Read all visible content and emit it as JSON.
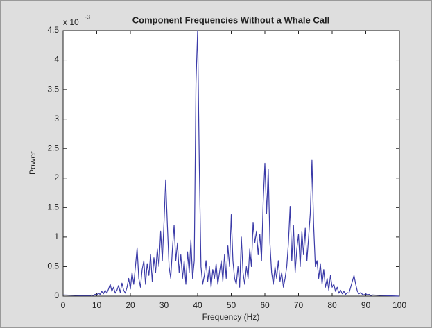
{
  "chart_data": {
    "type": "line",
    "title": "Component Frequencies Without a Whale Call",
    "xlabel": "Frequency (Hz)",
    "ylabel": "Power",
    "axis_multiplier": {
      "base": "x 10",
      "exponent": "-3"
    },
    "xlim": [
      0,
      100
    ],
    "xticks": [
      0,
      10,
      20,
      30,
      40,
      50,
      60,
      70,
      80,
      90,
      100
    ],
    "ylim": [
      0,
      4.5
    ],
    "yticks": [
      0,
      0.5,
      1,
      1.5,
      2,
      2.5,
      3,
      3.5,
      4,
      4.5
    ],
    "grid": false,
    "series": [
      {
        "color": "#3b3ba8",
        "x": [
          0,
          5,
          8,
          8.5,
          9,
          9.5,
          10,
          10.5,
          11,
          11.5,
          12,
          12.5,
          13,
          13.5,
          14,
          14.5,
          15,
          15.5,
          16,
          16.5,
          17,
          17.5,
          18,
          18.5,
          19,
          19.5,
          20,
          20.5,
          21,
          21.5,
          22,
          22.5,
          23,
          23.5,
          24,
          24.5,
          25,
          25.5,
          26,
          26.5,
          27,
          27.5,
          28,
          28.5,
          29,
          29.5,
          30,
          30.5,
          31,
          31.5,
          32,
          32.5,
          33,
          33.5,
          34,
          34.5,
          35,
          35.5,
          36,
          36.5,
          37,
          37.5,
          38,
          38.5,
          39,
          39.5,
          40,
          40.5,
          41,
          41.5,
          42,
          42.5,
          43,
          43.5,
          44,
          44.5,
          45,
          45.5,
          46,
          46.5,
          47,
          47.5,
          48,
          48.5,
          49,
          49.5,
          50,
          50.5,
          51,
          51.5,
          52,
          52.5,
          53,
          53.5,
          54,
          54.5,
          55,
          55.5,
          56,
          56.5,
          57,
          57.5,
          58,
          58.5,
          59,
          59.5,
          60,
          60.5,
          61,
          61.5,
          62,
          62.5,
          63,
          63.5,
          64,
          64.5,
          65,
          65.5,
          66,
          66.5,
          67,
          67.5,
          68,
          68.5,
          69,
          69.5,
          70,
          70.5,
          71,
          71.5,
          72,
          72.5,
          73,
          73.5,
          74,
          74.5,
          75,
          75.5,
          76,
          76.5,
          77,
          77.5,
          78,
          78.5,
          79,
          79.5,
          80,
          80.5,
          81,
          81.5,
          82,
          82.5,
          83,
          83.5,
          84,
          84.5,
          85,
          85.5,
          86,
          86.5,
          87,
          87.5,
          88,
          88.5,
          89,
          89.5,
          90,
          90.5,
          91,
          91.5,
          92,
          95,
          100
        ],
        "values": [
          0.02,
          0.01,
          0.01,
          0.02,
          0.01,
          0.03,
          0.02,
          0.05,
          0.03,
          0.08,
          0.04,
          0.1,
          0.05,
          0.12,
          0.2,
          0.08,
          0.15,
          0.05,
          0.1,
          0.18,
          0.06,
          0.22,
          0.1,
          0.05,
          0.15,
          0.3,
          0.12,
          0.4,
          0.2,
          0.5,
          0.82,
          0.3,
          0.15,
          0.45,
          0.6,
          0.2,
          0.55,
          0.35,
          0.7,
          0.25,
          0.65,
          0.4,
          0.8,
          0.5,
          1.1,
          0.6,
          1.25,
          1.97,
          1.2,
          0.5,
          0.3,
          0.8,
          1.2,
          0.6,
          0.9,
          0.4,
          0.7,
          0.3,
          0.6,
          0.2,
          0.75,
          0.4,
          0.95,
          0.3,
          0.6,
          3.6,
          4.5,
          2.2,
          0.5,
          0.2,
          0.35,
          0.6,
          0.25,
          0.5,
          0.15,
          0.45,
          0.3,
          0.55,
          0.2,
          0.4,
          0.6,
          0.25,
          0.7,
          0.3,
          0.85,
          0.5,
          1.38,
          0.6,
          0.3,
          0.2,
          0.5,
          0.15,
          1.0,
          0.4,
          0.2,
          0.5,
          0.3,
          0.8,
          0.5,
          1.25,
          0.9,
          1.1,
          0.7,
          1.05,
          0.6,
          1.6,
          2.25,
          1.4,
          2.15,
          0.9,
          0.4,
          0.2,
          0.5,
          0.3,
          0.6,
          0.25,
          0.4,
          0.15,
          0.3,
          0.5,
          0.9,
          1.52,
          0.6,
          1.2,
          0.4,
          0.8,
          1.05,
          0.5,
          1.1,
          0.7,
          1.15,
          0.6,
          1.0,
          1.4,
          2.3,
          1.2,
          0.5,
          0.6,
          0.3,
          0.55,
          0.2,
          0.45,
          0.15,
          0.3,
          0.1,
          0.35,
          0.15,
          0.2,
          0.08,
          0.15,
          0.05,
          0.1,
          0.04,
          0.08,
          0.03,
          0.06,
          0.05,
          0.15,
          0.25,
          0.35,
          0.2,
          0.08,
          0.04,
          0.06,
          0.03,
          0.02,
          0.04,
          0.02,
          0.03,
          0.01,
          0.02,
          0.01,
          0
        ]
      }
    ]
  }
}
